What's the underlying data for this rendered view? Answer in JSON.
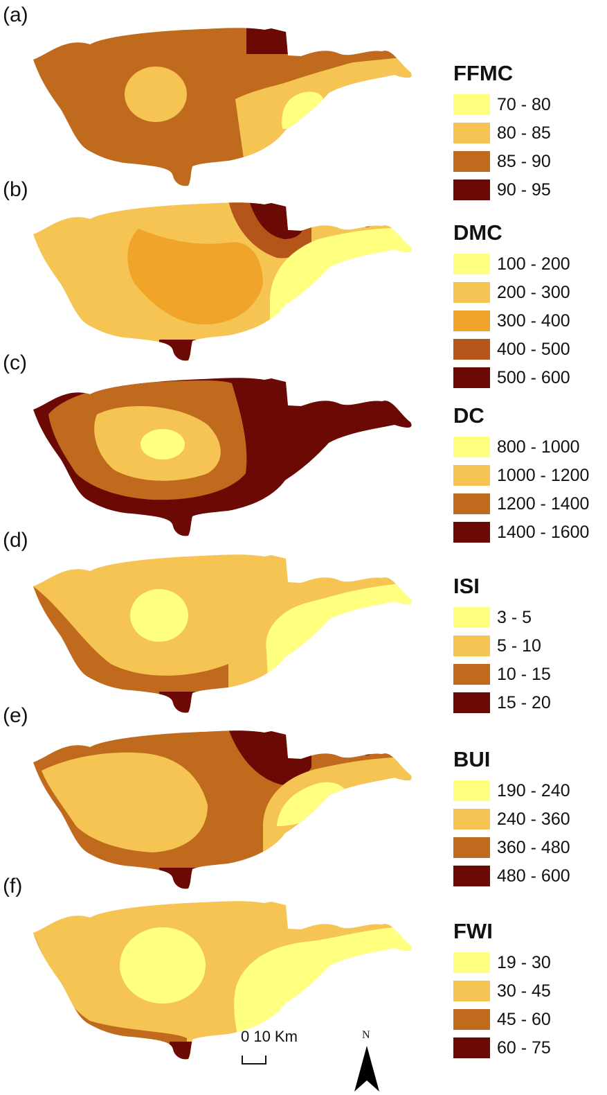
{
  "colors": {
    "c1": "#ffff80",
    "c2": "#f5c453",
    "c3": "#f0a52a",
    "c4": "#c06a1e",
    "c5": "#b5551a",
    "c6": "#6b0a05"
  },
  "panels": [
    {
      "label": "(a)",
      "title": "FFMC",
      "classes": [
        {
          "range": "70 - 80",
          "color": "#ffff80"
        },
        {
          "range": "80 - 85",
          "color": "#f5c453"
        },
        {
          "range": "85 - 90",
          "color": "#c06a1e"
        },
        {
          "range": "90 - 95",
          "color": "#6b0a05"
        }
      ]
    },
    {
      "label": "(b)",
      "title": "DMC",
      "classes": [
        {
          "range": "100 - 200",
          "color": "#ffff80"
        },
        {
          "range": "200 - 300",
          "color": "#f5c453"
        },
        {
          "range": "300 - 400",
          "color": "#f0a52a"
        },
        {
          "range": "400 - 500",
          "color": "#b5551a"
        },
        {
          "range": "500 - 600",
          "color": "#6b0a05"
        }
      ]
    },
    {
      "label": "(c)",
      "title": "DC",
      "classes": [
        {
          "range": "800 - 1000",
          "color": "#ffff80"
        },
        {
          "range": "1000 - 1200",
          "color": "#f5c453"
        },
        {
          "range": "1200 - 1400",
          "color": "#c06a1e"
        },
        {
          "range": "1400 - 1600",
          "color": "#6b0a05"
        }
      ]
    },
    {
      "label": "(d)",
      "title": "ISI",
      "classes": [
        {
          "range": "3 - 5",
          "color": "#ffff80"
        },
        {
          "range": "5 - 10",
          "color": "#f5c453"
        },
        {
          "range": "10 - 15",
          "color": "#c06a1e"
        },
        {
          "range": "15 - 20",
          "color": "#6b0a05"
        }
      ]
    },
    {
      "label": "(e)",
      "title": "BUI",
      "classes": [
        {
          "range": "190 - 240",
          "color": "#ffff80"
        },
        {
          "range": "240 - 360",
          "color": "#f5c453"
        },
        {
          "range": "360 - 480",
          "color": "#c06a1e"
        },
        {
          "range": "480 - 600",
          "color": "#6b0a05"
        }
      ]
    },
    {
      "label": "(f)",
      "title": "FWI",
      "classes": [
        {
          "range": "19 - 30",
          "color": "#ffff80"
        },
        {
          "range": "30 - 45",
          "color": "#f5c453"
        },
        {
          "range": "45 - 60",
          "color": "#c06a1e"
        },
        {
          "range": "60 - 75",
          "color": "#6b0a05"
        }
      ]
    }
  ],
  "scale_bar": {
    "label": "0  10 Km"
  },
  "north_arrow": {
    "label": "N"
  }
}
